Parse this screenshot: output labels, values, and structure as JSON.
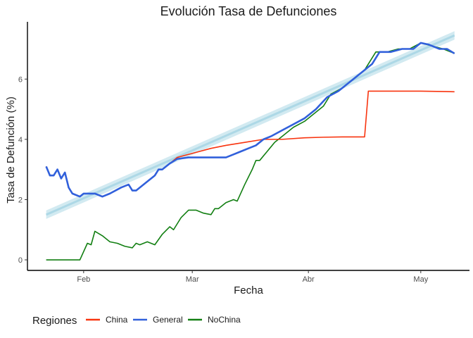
{
  "chart_data": {
    "type": "line",
    "title": "Evolución Tasa de Defunciones",
    "xlabel": "Fecha",
    "ylabel": "Tasa de Defunción (%)",
    "x_range": [
      "2020-01-22",
      "2020-05-10"
    ],
    "xlim": [
      "2020-01-17",
      "2020-05-14"
    ],
    "ylim": [
      -0.35,
      7.9
    ],
    "x_ticks": [
      {
        "date": "2020-02-01",
        "label": "Feb"
      },
      {
        "date": "2020-03-01",
        "label": "Mar"
      },
      {
        "date": "2020-04-01",
        "label": "Abr"
      },
      {
        "date": "2020-05-01",
        "label": "May"
      }
    ],
    "y_ticks": [
      0,
      2,
      4,
      6
    ],
    "grid": false,
    "legend": {
      "title": "Regiones",
      "position": "bottom"
    },
    "series": [
      {
        "name": "China",
        "color": "#F8340F",
        "points": [
          [
            "2020-01-22",
            3.1
          ],
          [
            "2020-01-23",
            2.8
          ],
          [
            "2020-01-24",
            2.8
          ],
          [
            "2020-01-25",
            3.0
          ],
          [
            "2020-01-26",
            2.7
          ],
          [
            "2020-01-27",
            2.9
          ],
          [
            "2020-01-28",
            2.4
          ],
          [
            "2020-01-29",
            2.2
          ],
          [
            "2020-01-31",
            2.1
          ],
          [
            "2020-02-01",
            2.2
          ],
          [
            "2020-02-04",
            2.2
          ],
          [
            "2020-02-06",
            2.1
          ],
          [
            "2020-02-08",
            2.2
          ],
          [
            "2020-02-11",
            2.4
          ],
          [
            "2020-02-13",
            2.5
          ],
          [
            "2020-02-14",
            2.3
          ],
          [
            "2020-02-15",
            2.3
          ],
          [
            "2020-02-18",
            2.6
          ],
          [
            "2020-02-20",
            2.8
          ],
          [
            "2020-02-21",
            3.0
          ],
          [
            "2020-02-22",
            3.0
          ],
          [
            "2020-02-23",
            3.1
          ],
          [
            "2020-02-24",
            3.2
          ],
          [
            "2020-02-26",
            3.4
          ],
          [
            "2020-02-29",
            3.5
          ],
          [
            "2020-03-03",
            3.6
          ],
          [
            "2020-03-06",
            3.7
          ],
          [
            "2020-03-10",
            3.8
          ],
          [
            "2020-03-15",
            3.9
          ],
          [
            "2020-03-20",
            4.0
          ],
          [
            "2020-03-25",
            4.0
          ],
          [
            "2020-03-31",
            4.05
          ],
          [
            "2020-04-05",
            4.07
          ],
          [
            "2020-04-10",
            4.08
          ],
          [
            "2020-04-16",
            4.08
          ],
          [
            "2020-04-17",
            5.6
          ],
          [
            "2020-04-25",
            5.6
          ],
          [
            "2020-05-01",
            5.6
          ],
          [
            "2020-05-10",
            5.58
          ]
        ]
      },
      {
        "name": "General",
        "color": "#3160DB",
        "points": [
          [
            "2020-01-22",
            3.1
          ],
          [
            "2020-01-23",
            2.8
          ],
          [
            "2020-01-24",
            2.8
          ],
          [
            "2020-01-25",
            3.0
          ],
          [
            "2020-01-26",
            2.7
          ],
          [
            "2020-01-27",
            2.9
          ],
          [
            "2020-01-28",
            2.4
          ],
          [
            "2020-01-29",
            2.2
          ],
          [
            "2020-01-31",
            2.1
          ],
          [
            "2020-02-01",
            2.2
          ],
          [
            "2020-02-04",
            2.2
          ],
          [
            "2020-02-06",
            2.1
          ],
          [
            "2020-02-08",
            2.2
          ],
          [
            "2020-02-11",
            2.4
          ],
          [
            "2020-02-13",
            2.5
          ],
          [
            "2020-02-14",
            2.3
          ],
          [
            "2020-02-15",
            2.3
          ],
          [
            "2020-02-18",
            2.6
          ],
          [
            "2020-02-20",
            2.8
          ],
          [
            "2020-02-21",
            3.0
          ],
          [
            "2020-02-22",
            3.0
          ],
          [
            "2020-02-23",
            3.1
          ],
          [
            "2020-02-24",
            3.2
          ],
          [
            "2020-02-26",
            3.35
          ],
          [
            "2020-02-29",
            3.4
          ],
          [
            "2020-03-03",
            3.4
          ],
          [
            "2020-03-05",
            3.4
          ],
          [
            "2020-03-07",
            3.4
          ],
          [
            "2020-03-10",
            3.4
          ],
          [
            "2020-03-12",
            3.5
          ],
          [
            "2020-03-14",
            3.6
          ],
          [
            "2020-03-16",
            3.7
          ],
          [
            "2020-03-18",
            3.8
          ],
          [
            "2020-03-20",
            4.0
          ],
          [
            "2020-03-22",
            4.1
          ],
          [
            "2020-03-25",
            4.3
          ],
          [
            "2020-03-28",
            4.5
          ],
          [
            "2020-03-31",
            4.7
          ],
          [
            "2020-04-03",
            5.0
          ],
          [
            "2020-04-06",
            5.4
          ],
          [
            "2020-04-09",
            5.6
          ],
          [
            "2020-04-12",
            5.9
          ],
          [
            "2020-04-15",
            6.2
          ],
          [
            "2020-04-18",
            6.5
          ],
          [
            "2020-04-20",
            6.9
          ],
          [
            "2020-04-23",
            6.9
          ],
          [
            "2020-04-26",
            7.0
          ],
          [
            "2020-04-29",
            7.0
          ],
          [
            "2020-05-01",
            7.2
          ],
          [
            "2020-05-03",
            7.15
          ],
          [
            "2020-05-06",
            7.0
          ],
          [
            "2020-05-08",
            7.0
          ],
          [
            "2020-05-10",
            6.85
          ]
        ]
      },
      {
        "name": "NoChina",
        "color": "#127F12",
        "points": [
          [
            "2020-01-22",
            0.0
          ],
          [
            "2020-01-31",
            0.0
          ],
          [
            "2020-02-02",
            0.55
          ],
          [
            "2020-02-03",
            0.5
          ],
          [
            "2020-02-04",
            0.95
          ],
          [
            "2020-02-06",
            0.8
          ],
          [
            "2020-02-08",
            0.6
          ],
          [
            "2020-02-10",
            0.55
          ],
          [
            "2020-02-12",
            0.45
          ],
          [
            "2020-02-14",
            0.4
          ],
          [
            "2020-02-15",
            0.55
          ],
          [
            "2020-02-16",
            0.5
          ],
          [
            "2020-02-18",
            0.6
          ],
          [
            "2020-02-20",
            0.5
          ],
          [
            "2020-02-22",
            0.85
          ],
          [
            "2020-02-24",
            1.1
          ],
          [
            "2020-02-25",
            1.0
          ],
          [
            "2020-02-27",
            1.4
          ],
          [
            "2020-02-29",
            1.65
          ],
          [
            "2020-03-02",
            1.65
          ],
          [
            "2020-03-04",
            1.55
          ],
          [
            "2020-03-06",
            1.5
          ],
          [
            "2020-03-07",
            1.7
          ],
          [
            "2020-03-08",
            1.7
          ],
          [
            "2020-03-10",
            1.9
          ],
          [
            "2020-03-12",
            2.0
          ],
          [
            "2020-03-13",
            1.95
          ],
          [
            "2020-03-15",
            2.5
          ],
          [
            "2020-03-17",
            3.0
          ],
          [
            "2020-03-18",
            3.3
          ],
          [
            "2020-03-19",
            3.3
          ],
          [
            "2020-03-21",
            3.6
          ],
          [
            "2020-03-23",
            3.9
          ],
          [
            "2020-03-25",
            4.1
          ],
          [
            "2020-03-28",
            4.4
          ],
          [
            "2020-03-31",
            4.6
          ],
          [
            "2020-04-02",
            4.8
          ],
          [
            "2020-04-05",
            5.1
          ],
          [
            "2020-04-07",
            5.5
          ],
          [
            "2020-04-10",
            5.7
          ],
          [
            "2020-04-13",
            6.0
          ],
          [
            "2020-04-16",
            6.3
          ],
          [
            "2020-04-19",
            6.9
          ],
          [
            "2020-04-22",
            6.9
          ],
          [
            "2020-04-25",
            7.0
          ],
          [
            "2020-04-28",
            7.0
          ],
          [
            "2020-05-01",
            7.2
          ],
          [
            "2020-05-04",
            7.1
          ],
          [
            "2020-05-07",
            7.0
          ],
          [
            "2020-05-10",
            6.85
          ]
        ]
      }
    ],
    "trend": {
      "color": "#ADD8E6",
      "band_color": "#ADD8E6",
      "from": [
        "2020-01-22",
        1.5
      ],
      "to": [
        "2020-05-10",
        7.45
      ],
      "band": 0.14
    }
  }
}
